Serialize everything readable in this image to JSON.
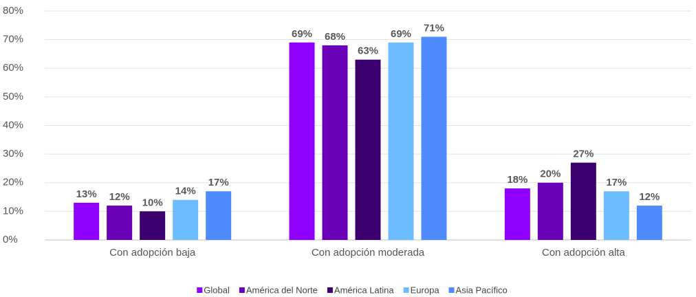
{
  "chart_data": {
    "type": "bar",
    "categories": [
      "Con adopción baja",
      "Con adopción moderada",
      "Con adopción alta"
    ],
    "series": [
      {
        "name": "Global",
        "color": "#9000ff",
        "values": [
          13,
          69,
          18
        ],
        "value_labels": [
          "13%",
          "69%",
          "18%"
        ]
      },
      {
        "name": "América del Norte",
        "color": "#6a00b8",
        "values": [
          12,
          68,
          20
        ],
        "value_labels": [
          "12%",
          "68%",
          "20%"
        ]
      },
      {
        "name": "América Latina",
        "color": "#3c006e",
        "values": [
          10,
          63,
          27
        ],
        "value_labels": [
          "10%",
          "63%",
          "27%"
        ]
      },
      {
        "name": "Europa",
        "color": "#6cbcff",
        "values": [
          14,
          69,
          17
        ],
        "value_labels": [
          "14%",
          "69%",
          "17%"
        ]
      },
      {
        "name": "Asia Pacífico",
        "color": "#4f8bff",
        "values": [
          17,
          71,
          12
        ],
        "value_labels": [
          "17%",
          "71%",
          "12%"
        ]
      }
    ],
    "ylim": [
      0,
      80
    ],
    "yticks": [
      {
        "value": 0,
        "label": "0%"
      },
      {
        "value": 10,
        "label": "10%"
      },
      {
        "value": 20,
        "label": "20%"
      },
      {
        "value": 30,
        "label": "30%"
      },
      {
        "value": 40,
        "label": "40%"
      },
      {
        "value": 50,
        "label": "50%"
      },
      {
        "value": 60,
        "label": "60%"
      },
      {
        "value": 70,
        "label": "70%"
      },
      {
        "value": 80,
        "label": "80%"
      }
    ],
    "grid": true,
    "legend": "bottom"
  }
}
